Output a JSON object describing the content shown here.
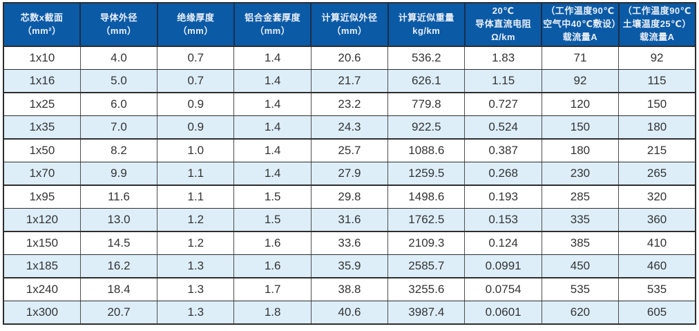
{
  "table": {
    "colors": {
      "header_bg": "#0b5aa6",
      "header_fg": "#e9eff8",
      "header_divider": "#1a2e4a",
      "row_alt": "#ddeef9",
      "border_dark": "#2d2d2d",
      "border_vertical": "#4d4d4d"
    },
    "columns": [
      {
        "lines": [
          "芯数x截面",
          "（mm²）"
        ]
      },
      {
        "lines": [
          "导体外径",
          "（mm）"
        ]
      },
      {
        "lines": [
          "绝缘厚度",
          "（mm）"
        ]
      },
      {
        "lines": [
          "铝合金套厚度",
          "（mm）"
        ]
      },
      {
        "lines": [
          "计算近似外径",
          "（mm）"
        ]
      },
      {
        "lines": [
          "计算近似重量",
          "kg/km"
        ]
      },
      {
        "lines": [
          "20℃",
          "导体直流电阻",
          "Ω/km"
        ]
      },
      {
        "lines": [
          "（工作温度90℃",
          "空气中40℃敷设）",
          "载流量A"
        ]
      },
      {
        "lines": [
          "（工作温度90℃",
          "土壤温度25℃）",
          "载流量A"
        ]
      }
    ],
    "rows": [
      [
        "1x10",
        "4.0",
        "0.7",
        "1.4",
        "20.6",
        "536.2",
        "1.83",
        "71",
        "92"
      ],
      [
        "1x16",
        "5.0",
        "0.7",
        "1.4",
        "21.7",
        "626.1",
        "1.15",
        "92",
        "115"
      ],
      [
        "1x25",
        "6.0",
        "0.9",
        "1.4",
        "23.2",
        "779.8",
        "0.727",
        "120",
        "150"
      ],
      [
        "1x35",
        "7.0",
        "0.9",
        "1.4",
        "24.3",
        "922.5",
        "0.524",
        "150",
        "180"
      ],
      [
        "1x50",
        "8.2",
        "1.0",
        "1.4",
        "25.7",
        "1088.6",
        "0.387",
        "180",
        "215"
      ],
      [
        "1x70",
        "9.9",
        "1.1",
        "1.4",
        "27.9",
        "1259.5",
        "0.268",
        "230",
        "265"
      ],
      [
        "1x95",
        "11.6",
        "1.1",
        "1.5",
        "29.8",
        "1498.6",
        "0.193",
        "285",
        "320"
      ],
      [
        "1x120",
        "13.0",
        "1.2",
        "1.5",
        "31.6",
        "1762.5",
        "0.153",
        "335",
        "360"
      ],
      [
        "1x150",
        "14.5",
        "1.2",
        "1.6",
        "33.6",
        "2109.3",
        "0.124",
        "385",
        "410"
      ],
      [
        "1x185",
        "16.2",
        "1.3",
        "1.6",
        "35.9",
        "2585.7",
        "0.0991",
        "450",
        "460"
      ],
      [
        "1x240",
        "18.4",
        "1.3",
        "1.7",
        "38.8",
        "3255.6",
        "0.0754",
        "535",
        "535"
      ],
      [
        "1x300",
        "20.7",
        "1.3",
        "1.8",
        "40.6",
        "3987.4",
        "0.0601",
        "620",
        "605"
      ]
    ]
  }
}
